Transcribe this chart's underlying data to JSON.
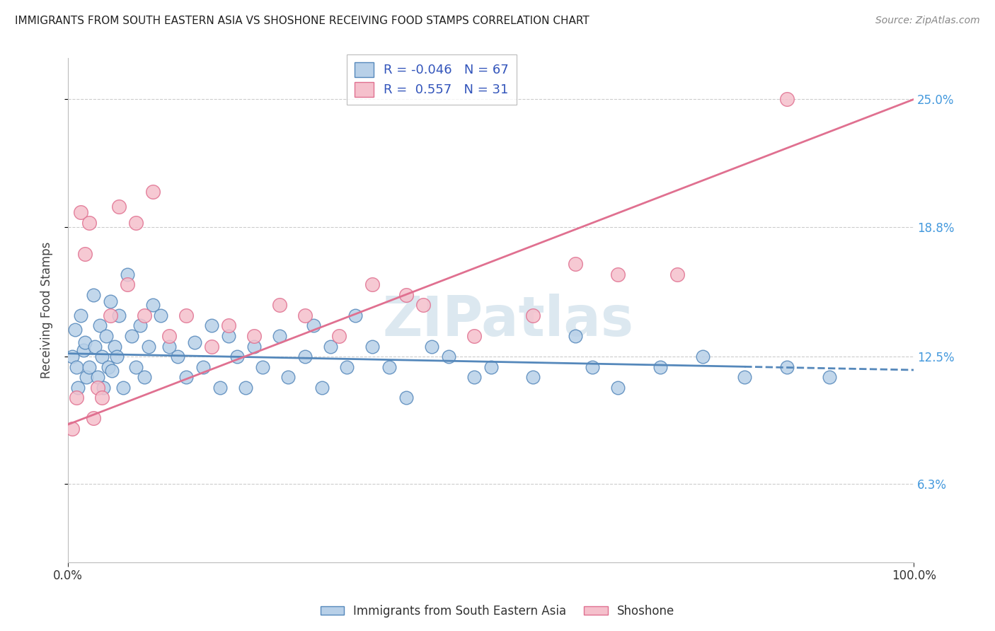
{
  "title": "IMMIGRANTS FROM SOUTH EASTERN ASIA VS SHOSHONE RECEIVING FOOD STAMPS CORRELATION CHART",
  "source": "Source: ZipAtlas.com",
  "ylabel": "Receiving Food Stamps",
  "xmin": 0.0,
  "xmax": 100.0,
  "ymin": 2.5,
  "ymax": 27.0,
  "yticks": [
    6.3,
    12.5,
    18.8,
    25.0
  ],
  "ytick_labels": [
    "6.3%",
    "12.5%",
    "18.8%",
    "25.0%"
  ],
  "xtick_labels": [
    "0.0%",
    "100.0%"
  ],
  "blue_color": "#b8d0e8",
  "blue_edge_color": "#5588bb",
  "pink_color": "#f5c0cc",
  "pink_edge_color": "#e07090",
  "blue_label": "Immigrants from South Eastern Asia",
  "pink_label": "Shoshone",
  "blue_R": -0.046,
  "blue_N": 67,
  "pink_R": 0.557,
  "pink_N": 31,
  "watermark": "ZIPatlas",
  "blue_line_start_y": 12.65,
  "blue_line_end_y": 11.85,
  "pink_line_start_y": 9.2,
  "pink_line_end_y": 25.0,
  "blue_scatter_x": [
    0.5,
    0.8,
    1.0,
    1.2,
    1.5,
    1.8,
    2.0,
    2.2,
    2.5,
    3.0,
    3.2,
    3.5,
    3.8,
    4.0,
    4.2,
    4.5,
    4.8,
    5.0,
    5.2,
    5.5,
    5.8,
    6.0,
    6.5,
    7.0,
    7.5,
    8.0,
    8.5,
    9.0,
    9.5,
    10.0,
    11.0,
    12.0,
    13.0,
    14.0,
    15.0,
    16.0,
    17.0,
    18.0,
    19.0,
    20.0,
    21.0,
    22.0,
    23.0,
    25.0,
    26.0,
    28.0,
    29.0,
    30.0,
    31.0,
    33.0,
    34.0,
    36.0,
    38.0,
    40.0,
    43.0,
    45.0,
    48.0,
    50.0,
    55.0,
    60.0,
    62.0,
    65.0,
    70.0,
    75.0,
    80.0,
    85.0,
    90.0
  ],
  "blue_scatter_y": [
    12.5,
    13.8,
    12.0,
    11.0,
    14.5,
    12.8,
    13.2,
    11.5,
    12.0,
    15.5,
    13.0,
    11.5,
    14.0,
    12.5,
    11.0,
    13.5,
    12.0,
    15.2,
    11.8,
    13.0,
    12.5,
    14.5,
    11.0,
    16.5,
    13.5,
    12.0,
    14.0,
    11.5,
    13.0,
    15.0,
    14.5,
    13.0,
    12.5,
    11.5,
    13.2,
    12.0,
    14.0,
    11.0,
    13.5,
    12.5,
    11.0,
    13.0,
    12.0,
    13.5,
    11.5,
    12.5,
    14.0,
    11.0,
    13.0,
    12.0,
    14.5,
    13.0,
    12.0,
    10.5,
    13.0,
    12.5,
    11.5,
    12.0,
    11.5,
    13.5,
    12.0,
    11.0,
    12.0,
    12.5,
    11.5,
    12.0,
    11.5
  ],
  "pink_scatter_x": [
    0.5,
    1.0,
    1.5,
    2.0,
    2.5,
    3.0,
    3.5,
    4.0,
    5.0,
    6.0,
    7.0,
    8.0,
    9.0,
    10.0,
    12.0,
    14.0,
    17.0,
    19.0,
    22.0,
    25.0,
    28.0,
    32.0,
    36.0,
    40.0,
    42.0,
    48.0,
    55.0,
    60.0,
    65.0,
    72.0,
    85.0
  ],
  "pink_scatter_y": [
    9.0,
    10.5,
    19.5,
    17.5,
    19.0,
    9.5,
    11.0,
    10.5,
    14.5,
    19.8,
    16.0,
    19.0,
    14.5,
    20.5,
    13.5,
    14.5,
    13.0,
    14.0,
    13.5,
    15.0,
    14.5,
    13.5,
    16.0,
    15.5,
    15.0,
    13.5,
    14.5,
    17.0,
    16.5,
    16.5,
    25.0
  ]
}
